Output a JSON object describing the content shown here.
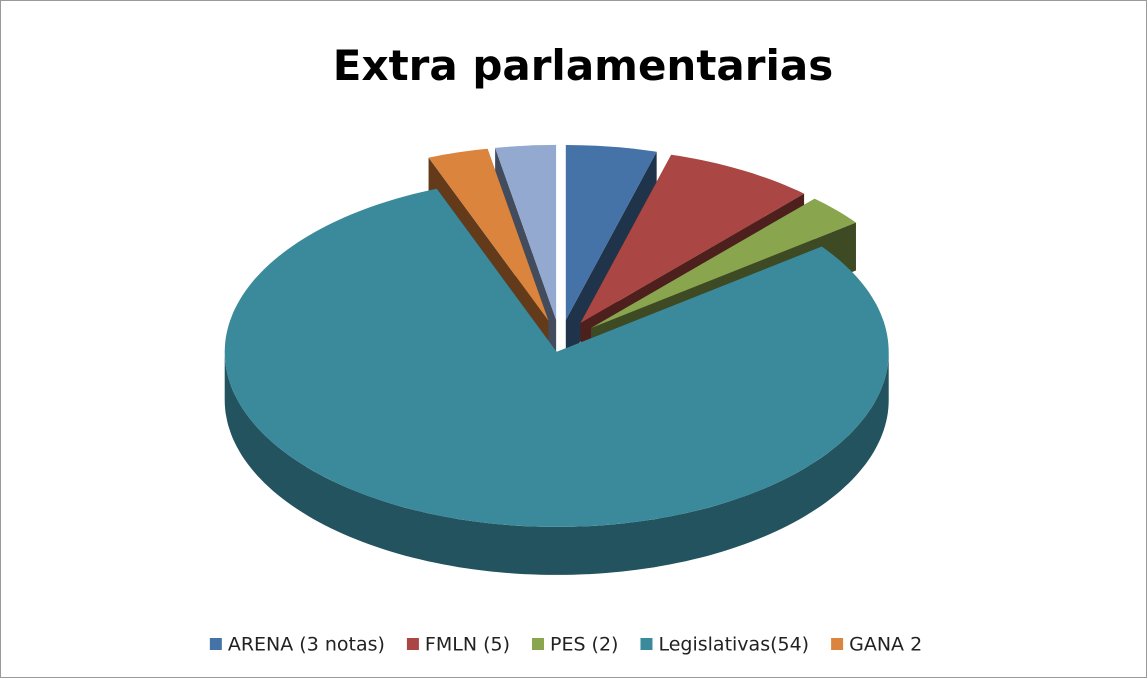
{
  "chart_data": {
    "type": "pie3d",
    "title": "Extra parlamentarias",
    "categories": [
      "ARENA (3 notas)",
      "FMLN (5)",
      "PES (2)",
      "Legislativas(54)",
      "GANA 2",
      null
    ],
    "values": [
      3,
      5,
      2,
      54,
      2,
      2
    ],
    "colors": [
      "#4573a7",
      "#aa4643",
      "#89a54e",
      "#3b8a9c",
      "#db843d",
      "#93a9cf"
    ],
    "legend": "bottom"
  }
}
